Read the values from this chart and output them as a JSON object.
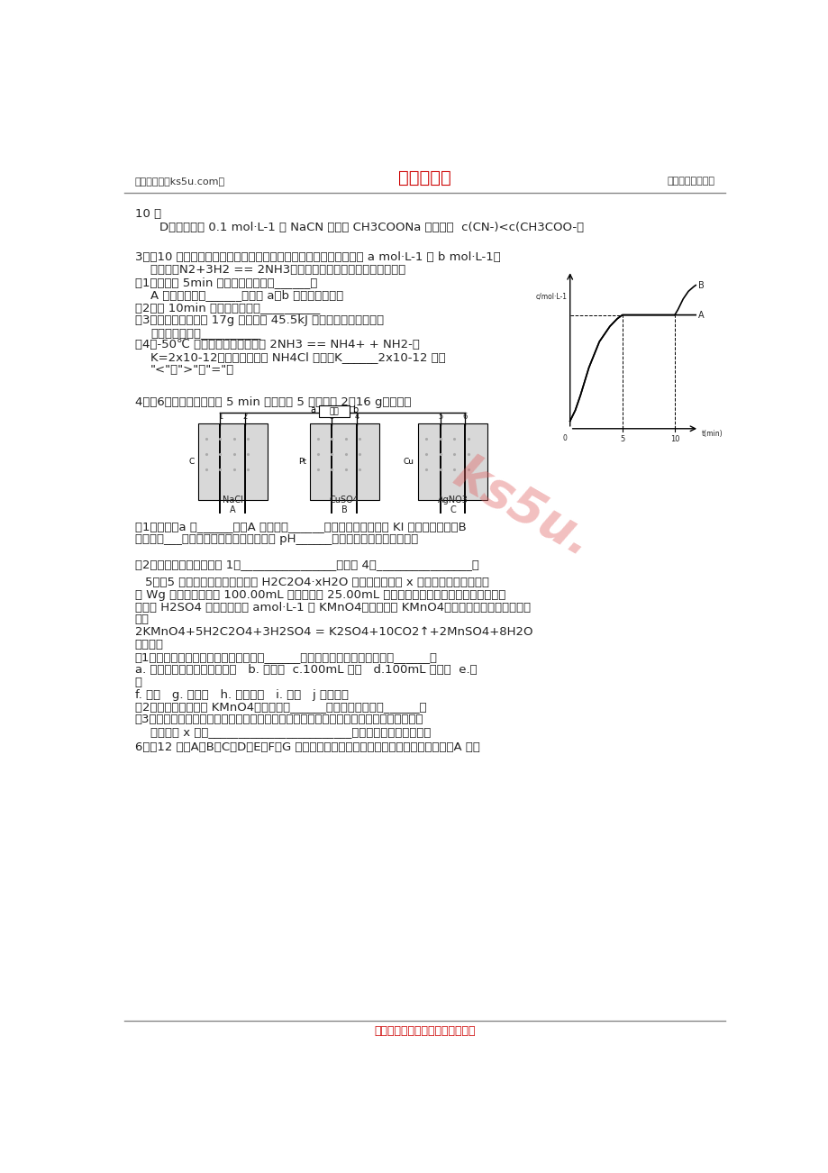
{
  "bg_color": "#ffffff",
  "header_left": "高考资源网（ks5u.com）",
  "header_center": "高考资源网",
  "header_right": "您身边的高考专家",
  "header_center_color": "#cc0000",
  "footer_text": "高考资源网版权所有，侵权必究！",
  "footer_color": "#cc0000",
  "watermark_text": "ks5u.",
  "watermark_color": "#e06060",
  "line1": "10 倍",
  "line2": "D．浓度均为 0.1 mol·L-1 的 NaCN 溶液和 CH3COONa 溶液中，  c(CN-)<c(CH3COO-）",
  "q3_title": "3．（10 分）在一定条件下，合成塔中氮气和氢气的起始浓度分别为 a mol·L-1 和 b mol·L-1，",
  "q3_line2": "反应为：N2+3H2 == 2NH3，氨气的浓度随时间变化如图所示。",
  "q3_q1": "（1）反应到 5min 时，氨气反应速率______。",
  "q3_q1b": "A 的平衡常数为______（用含 a，b 的表达式表示）",
  "q3_q2": "（2）在 10min 时采取的措施是__________",
  "q3_q3": "（3）若合成塔内生成 17g 氨气放出 45.5kJ 热量，写出合成氨反应",
  "q3_q3b": "的热化学方程式__________",
  "q3_q4": "（4）-50℃ 时，液氨存在如下电离 2NH3 == NH4+ + NH2-，",
  "q3_q4b": "K=2x10-12，往液氨中加入 NH4Cl 固体，K______2x10-12 （填",
  "q3_q4c": "\"<\"，\">\"或\"=\"）",
  "q4_title": "4．（6分）如下图，通电 5 min 后，电极 5 质量增加 2．16 g，回答：",
  "q4_q1": "（1）电源：a 是______极；A 池中电极______上产生气体能使湿润 KI 淀粉试纸变蓝；B",
  "q4_q1b": "池中电极___上发生氧化反应，电解过程中 pH______（填增大、减小或不变）。",
  "q4_q2": "（2）电池电极反应，电极 1：________________；电极 4：________________。",
  "q5_title": "5．（5 分）草酸晶体的组成可用 H2C2O4·xH2O 表示，为了测定 x 值，进行如下实验：称",
  "q5_line2": "取 Wg 草酸晶体，配成 100.00mL 水溶液。称 25.00mL 所配制的草酸溶液置于锥形瓶内，加入",
  "q5_line3": "适量稀 H2SO4 后，用浓度为 amol·L-1 的 KMnO4溶液滴定至 KMnO4不再褪色为止，所发生的反",
  "q5_line4": "应：",
  "q5_eq": "2KMnO4+5H2C2O4+3H2SO4 = K2SO4+10CO2↑+2MnSO4+8H2O",
  "q5_q1": "试回答：",
  "q5_q1a": "（1）实验中不需要的仪器有（填序号）______，还缺少的仪器有（填名称）______。",
  "q5_q1b": "a. 托盘天平（带砝码、镊子）   b. 滴定管  c.100mL 量筒   d.100mL 容量瓶  e.烧",
  "q5_q1c": "杯",
  "q5_q1d": "f. 漏斗   g. 锥形瓶   h. 玻璃棒球   i. 药匙   j 胶头滴管",
  "q5_q2": "（2）实验中，标准液 KMnO4溶液应装在______式滴定管中，因为______。",
  "q5_q3": "（3）若在接近滴定终点时，用少量蒸馏水将锥形瓶内壁冲洗一下，再继续滴定至终点，则",
  "q5_q3b": "所测得的 x 值会________________________（偏大、偏小、无影响）",
  "q6_title": "6．（12 分）A、B、C、D、E、F、G 七种元素均是短周期元素，且原子序数依次增大。A 原子"
}
